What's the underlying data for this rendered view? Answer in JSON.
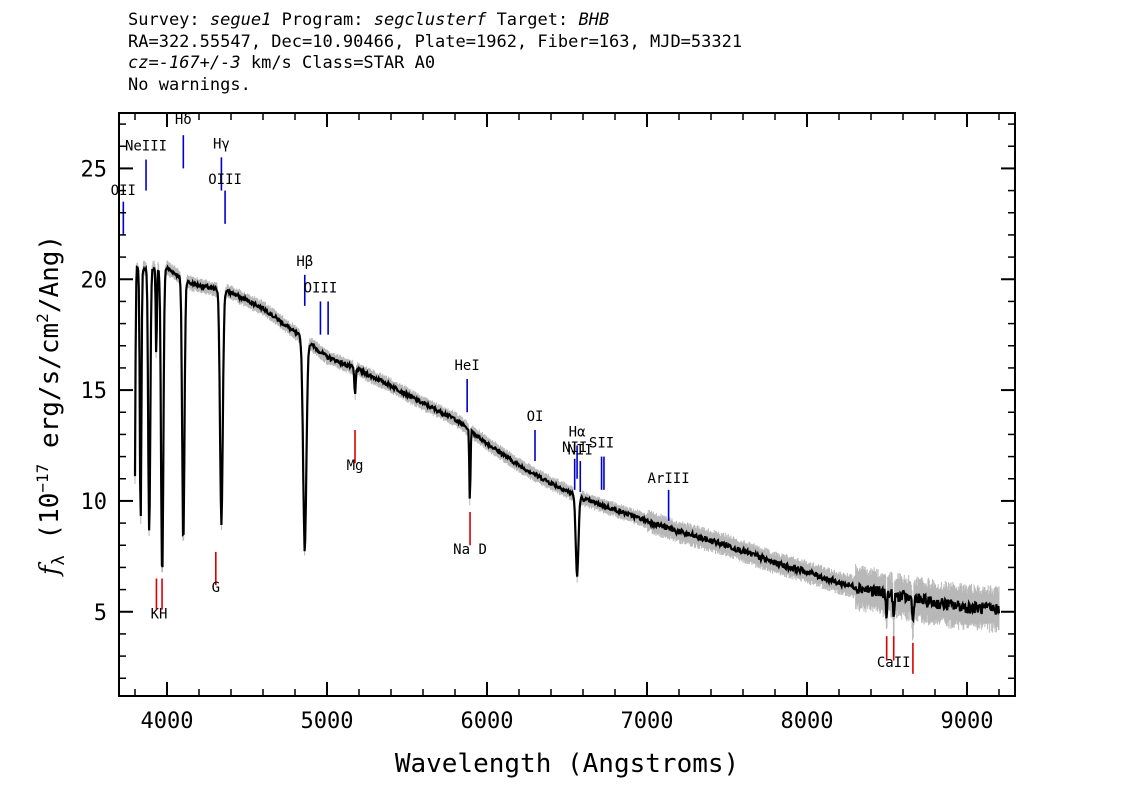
{
  "header": {
    "survey_label": "Survey:",
    "survey": "segue1",
    "program_label": "Program:",
    "program": "segclusterf",
    "target_label": "Target:",
    "target": "BHB",
    "line2": "RA=322.55547, Dec=10.90466, Plate=1962, Fiber=163, MJD=53321",
    "cz_label": "cz=",
    "cz_value": "-167+/-3",
    "cz_rest": " km/s Class=STAR A0",
    "line4": "No warnings."
  },
  "chart_data": {
    "type": "line",
    "xlabel": "Wavelength (Angstroms)",
    "ylabel": "fλ (10⁻¹⁷ erg/s/cm²/Ang)",
    "ylabel_parts": {
      "f": "f",
      "lambda": "λ",
      "open": " (10",
      "exp1": "−17",
      "mid": " erg/s/cm",
      "exp2": "2",
      "close": "/Ang)"
    },
    "xlim": [
      3700,
      9300
    ],
    "ylim": [
      1.2,
      27.5
    ],
    "x_ticks": [
      4000,
      5000,
      6000,
      7000,
      8000,
      9000
    ],
    "y_ticks": [
      5,
      10,
      15,
      20,
      25
    ],
    "grid": false,
    "continuum": [
      [
        3800,
        20.5
      ],
      [
        4000,
        20.5
      ],
      [
        4150,
        19.8
      ],
      [
        4400,
        19.4
      ],
      [
        4600,
        18.7
      ],
      [
        4800,
        17.6
      ],
      [
        5000,
        16.5
      ],
      [
        5200,
        15.9
      ],
      [
        5400,
        15.2
      ],
      [
        5600,
        14.4
      ],
      [
        5800,
        13.7
      ],
      [
        6000,
        12.6
      ],
      [
        6200,
        11.6
      ],
      [
        6400,
        10.8
      ],
      [
        6600,
        10.1
      ],
      [
        6800,
        9.6
      ],
      [
        7000,
        9.1
      ],
      [
        7200,
        8.6
      ],
      [
        7500,
        8.0
      ],
      [
        7800,
        7.2
      ],
      [
        8000,
        6.8
      ],
      [
        8200,
        6.3
      ],
      [
        8500,
        5.8
      ],
      [
        8800,
        5.4
      ],
      [
        9000,
        5.2
      ],
      [
        9200,
        5.1
      ]
    ],
    "absorption_lines": [
      {
        "wave": 3798,
        "depth": 10.5,
        "width": 6
      },
      {
        "wave": 3835,
        "depth": 11.5,
        "width": 7
      },
      {
        "wave": 3889,
        "depth": 12,
        "width": 9
      },
      {
        "wave": 3933,
        "depth": 4,
        "width": 5
      },
      {
        "wave": 3970,
        "depth": 14,
        "width": 10
      },
      {
        "wave": 4102,
        "depth": 12,
        "width": 10
      },
      {
        "wave": 4340,
        "depth": 10.5,
        "width": 12
      },
      {
        "wave": 4861,
        "depth": 9.5,
        "width": 14
      },
      {
        "wave": 5175,
        "depth": 1.2,
        "width": 6
      },
      {
        "wave": 5893,
        "depth": 3.2,
        "width": 5
      },
      {
        "wave": 6563,
        "depth": 3.6,
        "width": 12
      },
      {
        "wave": 8498,
        "depth": 1.0,
        "width": 5
      },
      {
        "wave": 8542,
        "depth": 1.3,
        "width": 5
      },
      {
        "wave": 8662,
        "depth": 1.2,
        "width": 5
      }
    ],
    "emission_markers": [
      {
        "label": "OII",
        "wave": 3727,
        "y_top": 23.5,
        "y_bottom": 22.0,
        "color": "#0000cc",
        "label_y": 23.8
      },
      {
        "label": "NeIII",
        "wave": 3869,
        "y_top": 25.4,
        "y_bottom": 24.0,
        "color": "#0000cc",
        "label_y": 25.8
      },
      {
        "label": "Hδ",
        "wave": 4102,
        "y_top": 26.5,
        "y_bottom": 25.0,
        "color": "#0000cc",
        "label_y": 27.0
      },
      {
        "label": "Hγ",
        "wave": 4340,
        "y_top": 25.5,
        "y_bottom": 24.0,
        "color": "#0000cc",
        "label_y": 25.9
      },
      {
        "label": "OIII",
        "wave": 4363,
        "y_top": 24.0,
        "y_bottom": 22.5,
        "color": "#0000cc",
        "label_y": 24.3
      },
      {
        "label": "Hβ",
        "wave": 4861,
        "y_top": 20.2,
        "y_bottom": 18.8,
        "color": "#0000cc",
        "label_y": 20.6
      },
      {
        "label": "OIII",
        "wave": 4959,
        "y_top": 19.0,
        "y_bottom": 17.5,
        "color": "#0000cc",
        "label_y": 19.4
      },
      {
        "label": "",
        "wave": 5007,
        "y_top": 19.0,
        "y_bottom": 17.5,
        "color": "#0000cc",
        "label_y": 0
      },
      {
        "label": "HeI",
        "wave": 5876,
        "y_top": 15.5,
        "y_bottom": 14.0,
        "color": "#0000cc",
        "label_y": 15.9
      },
      {
        "label": "OI",
        "wave": 6300,
        "y_top": 13.2,
        "y_bottom": 11.8,
        "color": "#0000cc",
        "label_y": 13.6
      },
      {
        "label": "NII",
        "wave": 6548,
        "y_top": 11.9,
        "y_bottom": 10.5,
        "color": "#0000cc",
        "label_y": 12.2
      },
      {
        "label": "Hα",
        "wave": 6563,
        "y_top": 12.5,
        "y_bottom": 11.0,
        "color": "#0000cc",
        "label_y": 12.9
      },
      {
        "label": "NII",
        "wave": 6583,
        "y_top": 11.8,
        "y_bottom": 10.4,
        "color": "#0000cc",
        "label_y": 12.1
      },
      {
        "label": "SII",
        "wave": 6716,
        "y_top": 12.0,
        "y_bottom": 10.5,
        "color": "#0000cc",
        "label_y": 12.4
      },
      {
        "label": "",
        "wave": 6731,
        "y_top": 12.0,
        "y_bottom": 10.5,
        "color": "#0000cc",
        "label_y": 0
      },
      {
        "label": "ArIII",
        "wave": 7135,
        "y_top": 10.5,
        "y_bottom": 9.1,
        "color": "#0000cc",
        "label_y": 10.8
      }
    ],
    "absorption_markers": [
      {
        "label": "KH",
        "wave": 3950,
        "label_y": 4.7
      },
      {
        "wave": 3934,
        "y_top": 6.5,
        "y_bottom": 5.1,
        "color": "#dd0000"
      },
      {
        "wave": 3969,
        "y_top": 6.5,
        "y_bottom": 5.1,
        "color": "#dd0000"
      },
      {
        "label": "G",
        "wave": 4305,
        "y_top": 7.7,
        "y_bottom": 6.2,
        "color": "#dd0000",
        "label_y": 5.9
      },
      {
        "label": "Mg",
        "wave": 5175,
        "y_top": 13.2,
        "y_bottom": 11.7,
        "color": "#dd0000",
        "label_y": 11.4
      },
      {
        "label": "Na D",
        "wave": 5894,
        "y_top": 9.5,
        "y_bottom": 8.0,
        "color": "#dd0000",
        "label_y": 7.6
      },
      {
        "label": "CaII",
        "wave": 8542,
        "label_y": 2.5
      },
      {
        "wave": 8498,
        "y_top": 3.9,
        "y_bottom": 2.8,
        "color": "#dd0000"
      },
      {
        "wave": 8542,
        "y_top": 3.9,
        "y_bottom": 2.8,
        "color": "#dd0000"
      },
      {
        "wave": 8662,
        "y_top": 3.6,
        "y_bottom": 2.2,
        "color": "#dd0000"
      }
    ],
    "colors": {
      "flux": "#000000",
      "noise": "#b8b8b8",
      "emission": "#0000cc",
      "absorption": "#dd0000"
    }
  }
}
